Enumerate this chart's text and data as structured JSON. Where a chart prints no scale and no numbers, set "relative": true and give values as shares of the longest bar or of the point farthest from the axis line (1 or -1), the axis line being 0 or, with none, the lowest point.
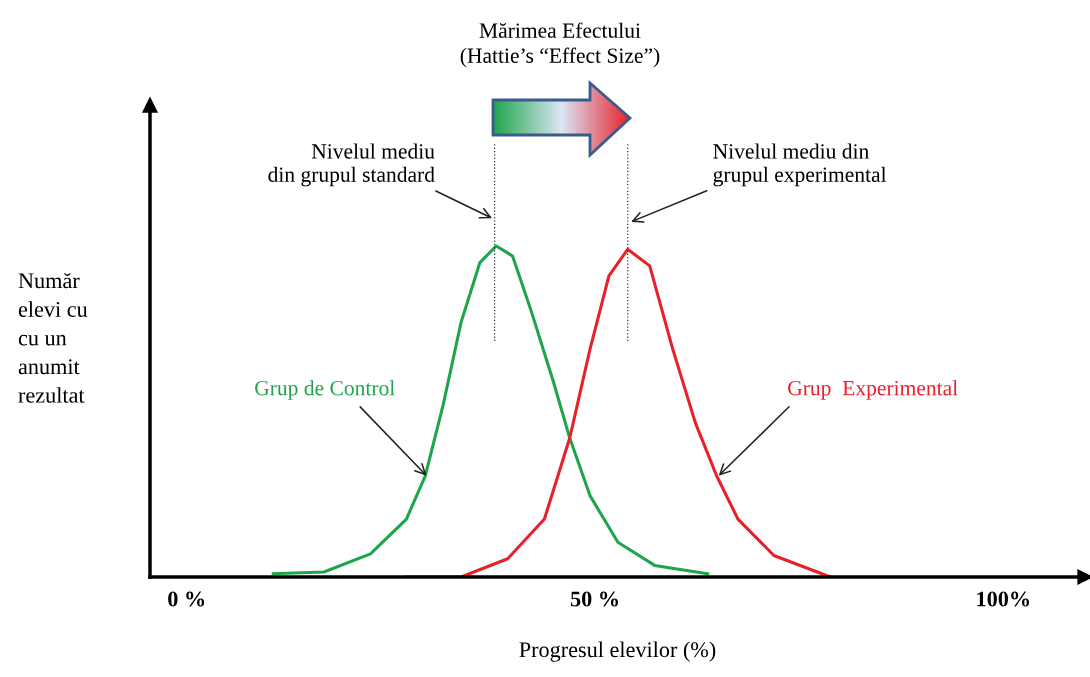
{
  "chart_data": {
    "type": "line",
    "relative": true,
    "title": "Mărimea Efectului\n(Hattie’s “Effect Size”)",
    "xlabel": "Progresul elevilor (%)",
    "ylabel": "Număr\nelevi cu\ncu un\nanumit\nrezultat",
    "xlim": [
      -4.5,
      110
    ],
    "xticks": [
      {
        "value": 0,
        "label": "0 %"
      },
      {
        "value": 50,
        "label": "50 %"
      },
      {
        "value": 100,
        "label": "100%"
      }
    ],
    "grid": false,
    "legend": false,
    "marker": "none",
    "line_style": "solid",
    "series": [
      {
        "color": "#1ea54b",
        "x": [
          10.6,
          16.8,
          22.5,
          26.9,
          29.2,
          31.4,
          33.6,
          35.9,
          37.9,
          39.9,
          42.1,
          44.9,
          46.9,
          49.4,
          52.8,
          57.3,
          63.8
        ],
        "values": [
          0.01,
          0.015,
          0.07,
          0.175,
          0.305,
          0.52,
          0.77,
          0.95,
          1.0,
          0.97,
          0.81,
          0.59,
          0.42,
          0.245,
          0.105,
          0.035,
          0.01
        ]
      },
      {
        "color": "#e8202a",
        "x": [
          26.9,
          33.6,
          39.3,
          43.8,
          46.9,
          49.4,
          51.7,
          54.0,
          56.7,
          59.5,
          62.3,
          64.9,
          67.5,
          71.9,
          78.8
        ],
        "values": [
          0,
          0,
          0.055,
          0.175,
          0.42,
          0.69,
          0.91,
          0.99,
          0.94,
          0.69,
          0.465,
          0.305,
          0.175,
          0.065,
          0
        ]
      }
    ],
    "ref_lines": [
      {
        "axis": "x",
        "value": 37.7,
        "line_style": "dotted",
        "color": "#333333"
      },
      {
        "axis": "x",
        "value": 54.0,
        "line_style": "dotted",
        "color": "#333333"
      }
    ],
    "annotations": [
      {
        "text": "Nivelul mediu\ndin grupul standard",
        "x": 37.7,
        "y": 1.08
      },
      {
        "text": "Nivelul mediu din\ngrupul experimental",
        "x": 54.1,
        "y": 1.07
      },
      {
        "text": "Grup de Control",
        "x": 29.6,
        "y": 0.3
      },
      {
        "text": "Grup  Experimental",
        "x": 64.9,
        "y": 0.3
      }
    ]
  }
}
